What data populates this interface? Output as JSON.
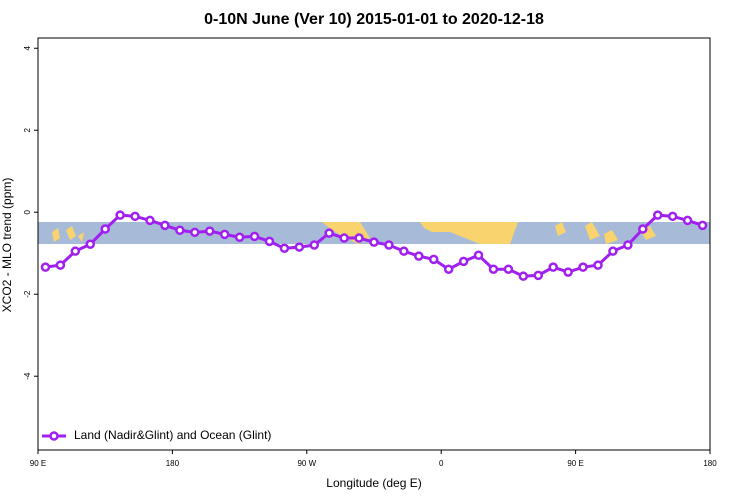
{
  "chart_data": {
    "type": "line",
    "title": "0-10N June (Ver 10)   2015-01-01 to 2020-12-18",
    "x_label": "Longitude (deg E)",
    "y_label": "XCO2 - MLO trend (ppm)",
    "x": [
      95,
      105,
      115,
      125,
      135,
      145,
      155,
      165,
      175,
      185,
      195,
      205,
      215,
      225,
      235,
      245,
      255,
      265,
      275,
      285,
      295,
      305,
      315,
      325,
      335,
      345,
      355,
      365,
      375,
      385,
      395,
      405,
      415,
      425,
      435,
      445,
      455,
      465,
      475,
      485,
      495,
      505,
      515,
      525,
      535
    ],
    "series": [
      {
        "name": "Land (Nadir&Glint) and Ocean (Glint)",
        "color": "#a020f0",
        "values": [
          -1.34,
          -1.29,
          -0.95,
          -0.78,
          -0.41,
          -0.07,
          -0.1,
          -0.2,
          -0.32,
          -0.44,
          -0.49,
          -0.46,
          -0.54,
          -0.61,
          -0.59,
          -0.71,
          -0.88,
          -0.85,
          -0.8,
          -0.51,
          -0.63,
          -0.63,
          -0.73,
          -0.8,
          -0.95,
          -1.07,
          -1.15,
          -1.39,
          -1.2,
          -1.05,
          -1.39,
          -1.39,
          -1.56,
          -1.54,
          -1.34,
          -1.46,
          -1.34,
          -1.29,
          -0.95,
          -0.8,
          -0.41,
          -0.07,
          -0.1,
          -0.2,
          -0.32
        ]
      }
    ],
    "xlim": [
      90,
      540
    ],
    "ylim": [
      -5.8,
      4.25
    ],
    "xticks": [
      {
        "value": 90,
        "label": "90 E"
      },
      {
        "value": 180,
        "label": "180"
      },
      {
        "value": 270,
        "label": "90 W"
      },
      {
        "value": 360,
        "label": "0"
      },
      {
        "value": 450,
        "label": "90 E"
      },
      {
        "value": 540,
        "label": "180"
      }
    ],
    "yticks": [
      -4,
      -2,
      0,
      2,
      4
    ],
    "legend": "bottom-left"
  }
}
